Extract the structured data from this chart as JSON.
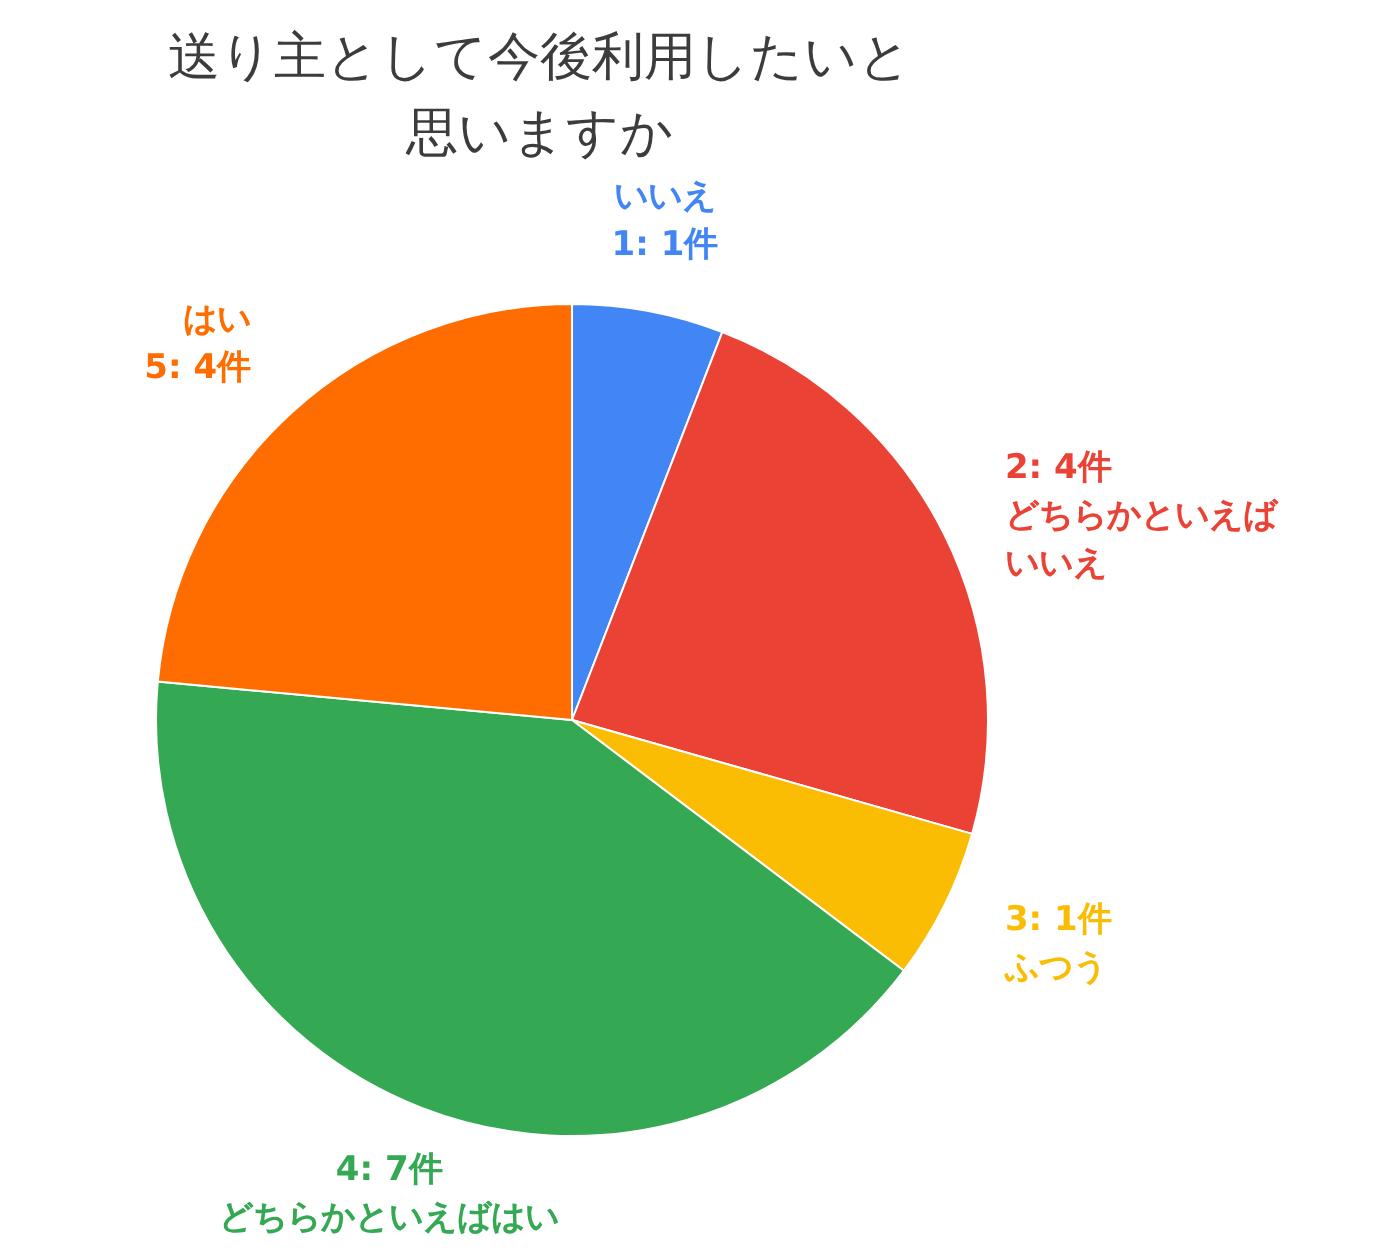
{
  "chart_data": {
    "type": "pie",
    "title": "送り主として今後利用したいと思いますか",
    "categories": [
      "いいえ",
      "どちらかといえばいいえ",
      "ふつう",
      "どちらかといえばはい",
      "はい"
    ],
    "values": [
      1,
      4,
      1,
      7,
      4
    ],
    "value_labels": [
      "1: 1件",
      "2: 4件",
      "3: 1件",
      "4: 7件",
      "5: 4件"
    ],
    "colors": [
      "#4285f4",
      "#ea4335",
      "#fbbc04",
      "#34a853",
      "#ff6d01"
    ]
  }
}
